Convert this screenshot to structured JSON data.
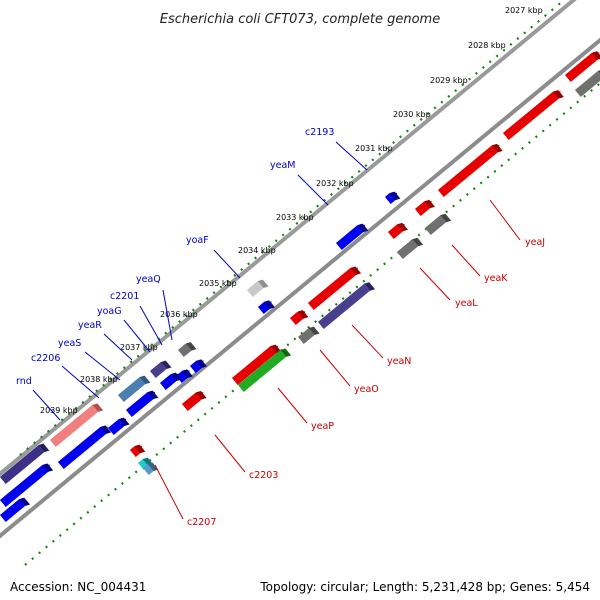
{
  "title": "Escherichia coli CFT073, complete genome",
  "footer": {
    "accession": "Accession: NC_004431",
    "summary": "Topology: circular; Length: 5,231,428 bp; Genes: 5,454"
  },
  "colors": {
    "forward_label": "#0000cc",
    "reverse_label": "#cc0000",
    "backbone": "#8c8c8c",
    "tick": "#118811"
  },
  "kbp_ticks": [
    "2027 kbp",
    "2028 kbp",
    "2029 kbp",
    "2030 kbp",
    "2031 kbp",
    "2032 kbp",
    "2033 kbp",
    "2034 kbp",
    "2035 kbp",
    "2036 kbp",
    "2037 kbp",
    "2038 kbp",
    "2039 kbp"
  ],
  "forward_labels": [
    "c2193",
    "yeaM",
    "yoaF",
    "yeaQ",
    "c2201",
    "yoaG",
    "yeaR",
    "yeaS",
    "c2206",
    "rnd"
  ],
  "reverse_labels": [
    "yeaJ",
    "yeaK",
    "yeaL",
    "yeaN",
    "yeaO",
    "yeaP",
    "c2203",
    "c2207"
  ]
}
